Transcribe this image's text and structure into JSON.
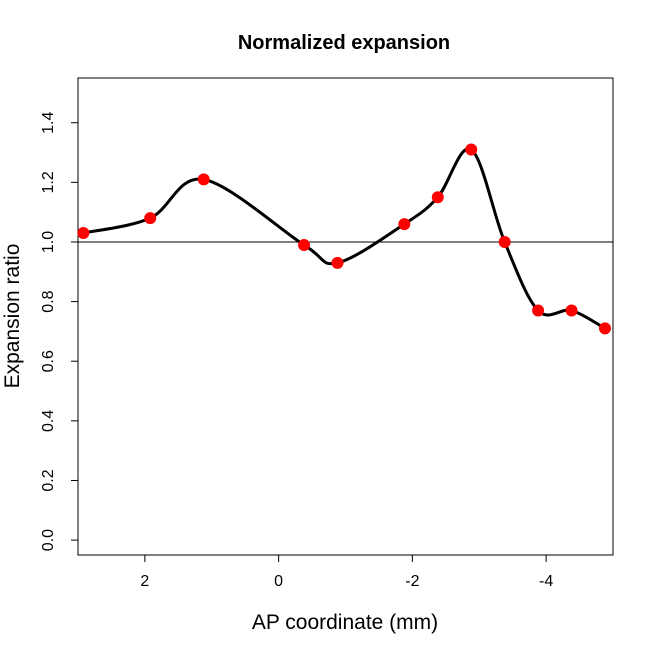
{
  "chart_data": {
    "type": "scatter",
    "title": "Normalized expansion",
    "xlabel": "AP coordinate (mm)",
    "ylabel": "Expansion ratio",
    "x_reversed": true,
    "xlim": [
      3.0,
      -5.0
    ],
    "ylim": [
      -0.05,
      1.55
    ],
    "x_ticks": [
      2,
      0,
      -2,
      -4
    ],
    "x_tick_labels": [
      "2",
      "0",
      "-2",
      "-4"
    ],
    "y_ticks": [
      0.0,
      0.2,
      0.4,
      0.6,
      0.8,
      1.0,
      1.2,
      1.4
    ],
    "y_tick_labels": [
      "0.0",
      "0.2",
      "0.4",
      "0.6",
      "0.8",
      "1.0",
      "1.2",
      "1.4"
    ],
    "reference_line": 1.0,
    "series": [
      {
        "marker_color": "#ff0000",
        "line_color": "#000000",
        "smooth_curve": true,
        "x": [
          2.92,
          1.92,
          1.12,
          -0.38,
          -0.88,
          -1.88,
          -2.38,
          -2.88,
          -3.38,
          -3.88,
          -4.38,
          -4.88
        ],
        "y": [
          1.03,
          1.08,
          1.21,
          0.99,
          0.93,
          1.06,
          1.15,
          1.31,
          1.0,
          0.77,
          0.77,
          0.71
        ]
      }
    ]
  }
}
